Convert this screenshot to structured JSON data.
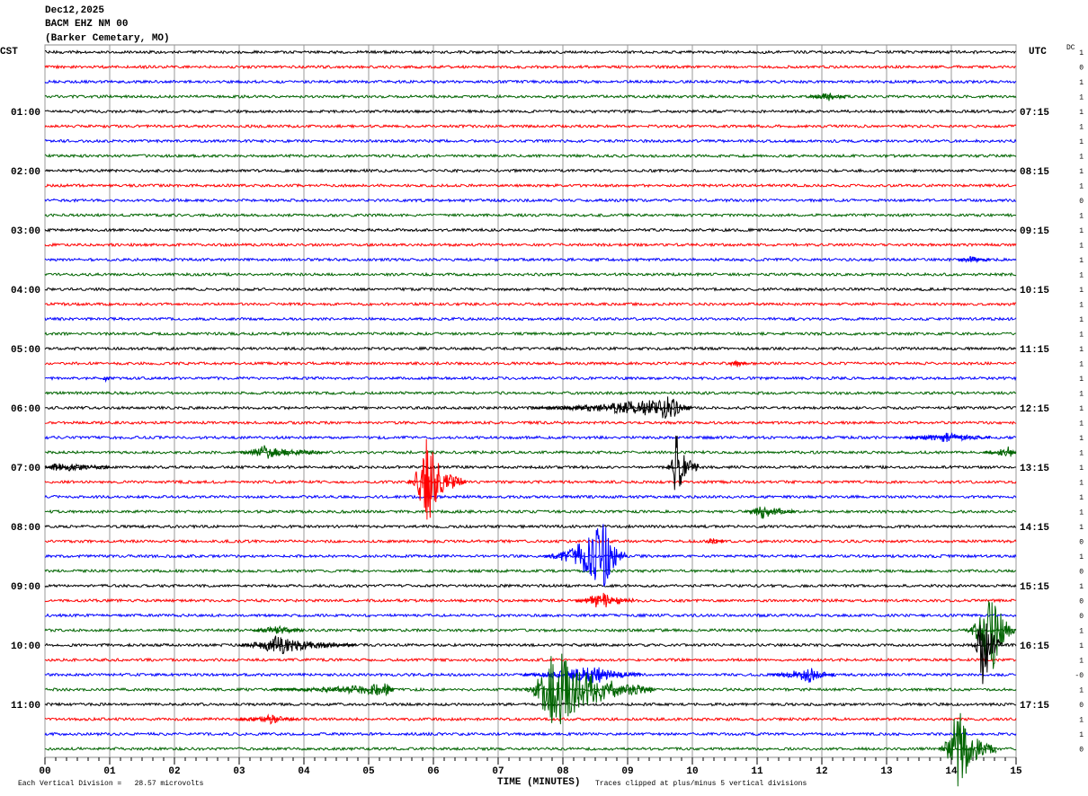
{
  "chart_data": {
    "type": "helicorder",
    "header": [
      "Dec12,2025",
      "BACM EHZ NM 00",
      "(Barker Cemetary, MO)"
    ],
    "left_title": "CST",
    "right_title": "UTC",
    "dc_title": "DC",
    "cst_labels": [
      null,
      null,
      null,
      null,
      "01:00",
      null,
      null,
      null,
      "02:00",
      null,
      null,
      null,
      "03:00",
      null,
      null,
      null,
      "04:00",
      null,
      null,
      null,
      "05:00",
      null,
      null,
      null,
      "06:00",
      null,
      null,
      null,
      "07:00",
      null,
      null,
      null,
      "08:00",
      null,
      null,
      null,
      "09:00",
      null,
      null,
      null,
      "10:00",
      null,
      null,
      null,
      "11:00",
      null,
      null,
      null
    ],
    "utc_labels": [
      null,
      null,
      null,
      null,
      "07:15",
      null,
      null,
      null,
      "08:15",
      null,
      null,
      null,
      "09:15",
      null,
      null,
      null,
      "10:15",
      null,
      null,
      null,
      "11:15",
      null,
      null,
      null,
      "12:15",
      null,
      null,
      null,
      "13:15",
      null,
      null,
      null,
      "14:15",
      null,
      null,
      null,
      "15:15",
      null,
      null,
      null,
      "16:15",
      null,
      null,
      null,
      "17:15",
      null,
      null,
      null
    ],
    "dc_labels": [
      "1",
      "0",
      "1",
      "1",
      "1",
      "1",
      "1",
      "1",
      "1",
      "1",
      "0",
      "1",
      "1",
      "1",
      "1",
      "1",
      "1",
      "1",
      "1",
      "1",
      "1",
      "1",
      "1",
      "1",
      "1",
      "1",
      "1",
      "1",
      "1",
      "1",
      "1",
      "1",
      "1",
      "0",
      "1",
      "0",
      "1",
      "0",
      "0",
      "1",
      "1",
      "1",
      "-0",
      "1",
      "0",
      "1",
      "1",
      "0"
    ],
    "colors": [
      "#000000",
      "#ff0000",
      "#0000ff",
      "#006400"
    ],
    "xlabel": "TIME (MINUTES)",
    "xlim": [
      0,
      15
    ],
    "xticks": [
      {
        "value": 0,
        "label": "00"
      },
      {
        "value": 1,
        "label": "01"
      },
      {
        "value": 2,
        "label": "02"
      },
      {
        "value": 3,
        "label": "03"
      },
      {
        "value": 4,
        "label": "04"
      },
      {
        "value": 5,
        "label": "05"
      },
      {
        "value": 6,
        "label": "06"
      },
      {
        "value": 7,
        "label": "07"
      },
      {
        "value": 8,
        "label": "08"
      },
      {
        "value": 9,
        "label": "09"
      },
      {
        "value": 10,
        "label": "10"
      },
      {
        "value": 11,
        "label": "11"
      },
      {
        "value": 12,
        "label": "12"
      },
      {
        "value": 13,
        "label": "13"
      },
      {
        "value": 14,
        "label": "14"
      },
      {
        "value": 15,
        "label": "15"
      }
    ],
    "grid": true,
    "scale_note": "Each Vertical Division =   28.57 microvolts",
    "clip_note": "Traces clipped at plus/minus 5 vertical divisions",
    "clip": 5,
    "noise_amplitude": 0.15,
    "events": [
      {
        "row": 3,
        "start": 11.8,
        "peak": 12.1,
        "end": 12.4,
        "amplitude": 0.4
      },
      {
        "row": 14,
        "start": 14.1,
        "peak": 14.3,
        "end": 14.6,
        "amplitude": 0.3
      },
      {
        "row": 21,
        "start": 10.55,
        "peak": 10.65,
        "end": 10.85,
        "amplitude": 0.5
      },
      {
        "row": 22,
        "start": 0.9,
        "peak": 0.95,
        "end": 1.0,
        "amplitude": 0.5
      },
      {
        "row": 24,
        "start": 7.5,
        "peak": 9.7,
        "end": 10.0,
        "amplitude": 1.2
      },
      {
        "row": 26,
        "start": 13.3,
        "peak": 13.9,
        "end": 14.6,
        "amplitude": 0.5
      },
      {
        "row": 27,
        "start": 3.0,
        "peak": 3.4,
        "end": 4.3,
        "amplitude": 0.7
      },
      {
        "row": 27,
        "start": 14.5,
        "peak": 14.9,
        "end": 15.0,
        "amplitude": 0.6
      },
      {
        "row": 28,
        "start": 0.0,
        "peak": 0.2,
        "end": 1.0,
        "amplitude": 0.5
      },
      {
        "row": 28,
        "start": 9.6,
        "peak": 9.75,
        "end": 10.1,
        "amplitude": 4
      },
      {
        "row": 29,
        "start": 5.6,
        "peak": 5.9,
        "end": 6.5,
        "amplitude": 5
      },
      {
        "row": 31,
        "start": 10.8,
        "peak": 11.1,
        "end": 11.6,
        "amplitude": 0.8
      },
      {
        "row": 33,
        "start": 10.2,
        "peak": 10.3,
        "end": 10.5,
        "amplitude": 0.3
      },
      {
        "row": 34,
        "start": 7.7,
        "peak": 8.65,
        "end": 9.0,
        "amplitude": 4
      },
      {
        "row": 37,
        "start": 8.2,
        "peak": 8.6,
        "end": 9.1,
        "amplitude": 1
      },
      {
        "row": 39,
        "start": 3.2,
        "peak": 3.6,
        "end": 4.0,
        "amplitude": 0.4
      },
      {
        "row": 39,
        "start": 14.2,
        "peak": 14.65,
        "end": 15.0,
        "amplitude": 5
      },
      {
        "row": 40,
        "start": 3.0,
        "peak": 3.6,
        "end": 4.8,
        "amplitude": 1
      },
      {
        "row": 40,
        "start": 14.3,
        "peak": 14.5,
        "end": 14.8,
        "amplitude": 5
      },
      {
        "row": 42,
        "start": 7.4,
        "peak": 8.5,
        "end": 9.2,
        "amplitude": 1
      },
      {
        "row": 42,
        "start": 11.2,
        "peak": 11.8,
        "end": 12.2,
        "amplitude": 0.8
      },
      {
        "row": 43,
        "start": 3.5,
        "peak": 5.3,
        "end": 5.4,
        "amplitude": 0.6
      },
      {
        "row": 43,
        "start": 7.4,
        "peak": 7.85,
        "end": 9.4,
        "amplitude": 5
      },
      {
        "row": 45,
        "start": 3.0,
        "peak": 3.5,
        "end": 3.9,
        "amplitude": 0.4
      },
      {
        "row": 47,
        "start": 13.8,
        "peak": 14.1,
        "end": 14.7,
        "amplitude": 5
      }
    ]
  }
}
